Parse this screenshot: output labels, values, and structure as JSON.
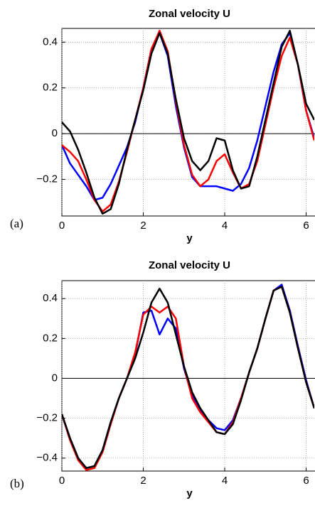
{
  "chart_data": [
    {
      "type": "line",
      "title": "Zonal velocity U",
      "xlabel": "y",
      "panel_label": "(a)",
      "x": [
        0,
        0.2,
        0.4,
        0.6,
        0.8,
        1.0,
        1.2,
        1.4,
        1.6,
        1.8,
        2.0,
        2.2,
        2.4,
        2.6,
        2.8,
        3.0,
        3.2,
        3.4,
        3.6,
        3.8,
        4.0,
        4.2,
        4.4,
        4.6,
        4.8,
        5.0,
        5.2,
        5.4,
        5.6,
        5.8,
        6.0,
        6.2
      ],
      "series": [
        {
          "color": "#0000ff",
          "values": [
            -0.05,
            -0.13,
            -0.18,
            -0.23,
            -0.29,
            -0.28,
            -0.22,
            -0.14,
            -0.06,
            0.05,
            0.2,
            0.37,
            0.44,
            0.34,
            0.12,
            -0.06,
            -0.19,
            -0.23,
            -0.23,
            -0.23,
            -0.24,
            -0.25,
            -0.22,
            -0.15,
            -0.03,
            0.12,
            0.27,
            0.39,
            0.44,
            0.3,
            0.1,
            -0.02
          ]
        },
        {
          "color": "#ff0000",
          "values": [
            -0.05,
            -0.08,
            -0.12,
            -0.2,
            -0.29,
            -0.34,
            -0.31,
            -0.21,
            -0.08,
            0.06,
            0.2,
            0.37,
            0.45,
            0.36,
            0.14,
            -0.05,
            -0.18,
            -0.23,
            -0.2,
            -0.12,
            -0.09,
            -0.17,
            -0.24,
            -0.22,
            -0.12,
            0.04,
            0.2,
            0.34,
            0.42,
            0.3,
            0.1,
            -0.03
          ]
        },
        {
          "color": "#000000",
          "values": [
            0.05,
            0.01,
            -0.07,
            -0.17,
            -0.28,
            -0.35,
            -0.33,
            -0.22,
            -0.07,
            0.06,
            0.19,
            0.35,
            0.44,
            0.35,
            0.15,
            -0.02,
            -0.12,
            -0.16,
            -0.12,
            -0.02,
            -0.03,
            -0.16,
            -0.24,
            -0.23,
            -0.1,
            0.06,
            0.22,
            0.38,
            0.45,
            0.3,
            0.13,
            0.06
          ]
        }
      ],
      "xlim": [
        0,
        6.2
      ],
      "xticks": [
        0,
        2,
        4,
        6
      ],
      "ylim": [
        -0.36,
        0.46
      ],
      "yticks": [
        {
          "value": -0.2,
          "label": "−0.2"
        },
        0,
        0.2,
        0.4
      ],
      "grid": true,
      "zero_line": true
    },
    {
      "type": "line",
      "title": "Zonal velocity U",
      "xlabel": "y",
      "panel_label": "(b)",
      "x": [
        0,
        0.2,
        0.4,
        0.6,
        0.8,
        1.0,
        1.2,
        1.4,
        1.6,
        1.8,
        2.0,
        2.2,
        2.4,
        2.6,
        2.8,
        3.0,
        3.2,
        3.4,
        3.6,
        3.8,
        4.0,
        4.2,
        4.4,
        4.6,
        4.8,
        5.0,
        5.2,
        5.4,
        5.6,
        5.8,
        6.0,
        6.2
      ],
      "series": [
        {
          "color": "#0000ff",
          "values": [
            -0.18,
            -0.3,
            -0.4,
            -0.45,
            -0.44,
            -0.36,
            -0.22,
            -0.1,
            0.0,
            0.12,
            0.33,
            0.34,
            0.22,
            0.3,
            0.25,
            0.05,
            -0.09,
            -0.16,
            -0.21,
            -0.25,
            -0.26,
            -0.21,
            -0.1,
            0.03,
            0.15,
            0.3,
            0.44,
            0.47,
            0.34,
            0.16,
            -0.01,
            -0.15
          ]
        },
        {
          "color": "#ff0000",
          "values": [
            -0.18,
            -0.31,
            -0.41,
            -0.46,
            -0.45,
            -0.37,
            -0.23,
            -0.1,
            0.0,
            0.13,
            0.32,
            0.36,
            0.33,
            0.36,
            0.3,
            0.06,
            -0.1,
            -0.17,
            -0.22,
            -0.27,
            -0.28,
            -0.22,
            -0.1,
            0.03,
            0.15,
            0.3,
            0.44,
            0.46,
            0.33,
            0.15,
            -0.02,
            -0.15
          ]
        },
        {
          "color": "#000000",
          "values": [
            -0.18,
            -0.3,
            -0.4,
            -0.45,
            -0.44,
            -0.36,
            -0.22,
            -0.1,
            0.0,
            0.1,
            0.23,
            0.38,
            0.45,
            0.38,
            0.22,
            0.06,
            -0.07,
            -0.15,
            -0.21,
            -0.27,
            -0.28,
            -0.23,
            -0.11,
            0.03,
            0.15,
            0.3,
            0.44,
            0.46,
            0.33,
            0.15,
            -0.02,
            -0.15
          ]
        }
      ],
      "xlim": [
        0,
        6.2
      ],
      "xticks": [
        0,
        2,
        4,
        6
      ],
      "ylim": [
        -0.465,
        0.49
      ],
      "yticks": [
        {
          "value": -0.4,
          "label": "−0.4"
        },
        {
          "value": -0.2,
          "label": "−0.2"
        },
        0,
        0.2,
        0.4
      ],
      "grid": true,
      "zero_line": true
    }
  ]
}
